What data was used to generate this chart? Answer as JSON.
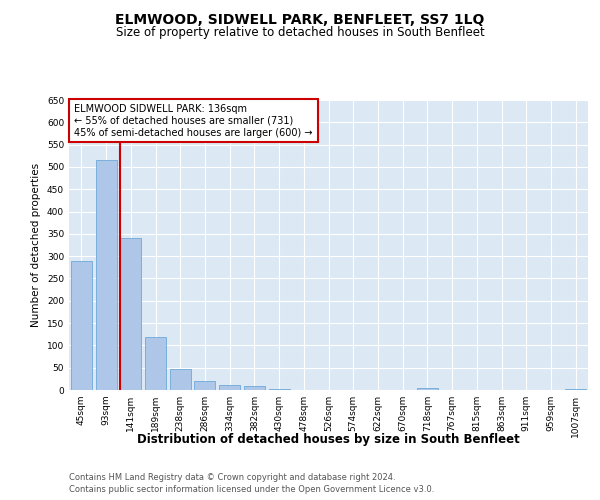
{
  "title": "ELMWOOD, SIDWELL PARK, BENFLEET, SS7 1LQ",
  "subtitle": "Size of property relative to detached houses in South Benfleet",
  "xlabel": "Distribution of detached houses by size in South Benfleet",
  "ylabel": "Number of detached properties",
  "footer_line1": "Contains HM Land Registry data © Crown copyright and database right 2024.",
  "footer_line2": "Contains public sector information licensed under the Open Government Licence v3.0.",
  "bar_labels": [
    "45sqm",
    "93sqm",
    "141sqm",
    "189sqm",
    "238sqm",
    "286sqm",
    "334sqm",
    "382sqm",
    "430sqm",
    "478sqm",
    "526sqm",
    "574sqm",
    "622sqm",
    "670sqm",
    "718sqm",
    "767sqm",
    "815sqm",
    "863sqm",
    "911sqm",
    "959sqm",
    "1007sqm"
  ],
  "bar_values": [
    290,
    515,
    340,
    118,
    46,
    20,
    12,
    10,
    3,
    1,
    1,
    0,
    0,
    0,
    5,
    0,
    0,
    0,
    0,
    0,
    3
  ],
  "bar_color": "#aec6e8",
  "bar_edge_color": "#5a9fd4",
  "vline_color": "#cc0000",
  "annotation_text": "ELMWOOD SIDWELL PARK: 136sqm\n← 55% of detached houses are smaller (731)\n45% of semi-detached houses are larger (600) →",
  "annotation_box_color": "#ffffff",
  "annotation_box_edge_color": "#cc0000",
  "ylim": [
    0,
    650
  ],
  "yticks": [
    0,
    50,
    100,
    150,
    200,
    250,
    300,
    350,
    400,
    450,
    500,
    550,
    600,
    650
  ],
  "bar_color_left": "#aec6e8",
  "bar_color_right": "#aec6e8",
  "fig_bg_color": "#ffffff",
  "plot_bg_color": "#dce9f5",
  "title_fontsize": 10,
  "subtitle_fontsize": 8.5,
  "xlabel_fontsize": 8.5,
  "ylabel_fontsize": 7.5,
  "tick_fontsize": 6.5,
  "footer_fontsize": 6,
  "annotation_fontsize": 7
}
